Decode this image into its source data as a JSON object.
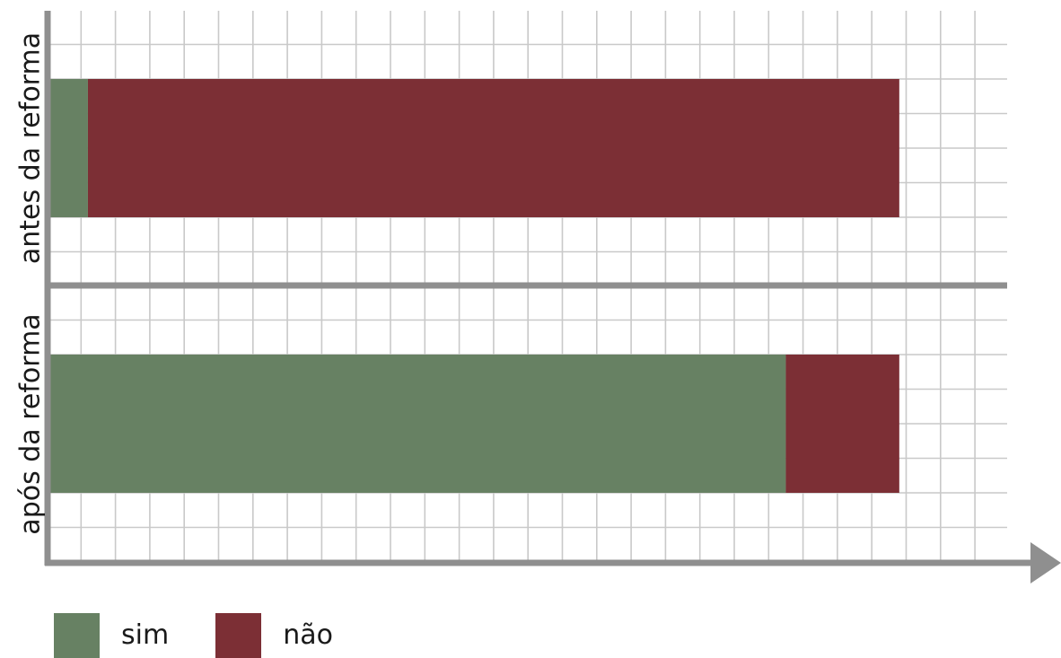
{
  "chart_data": {
    "type": "bar",
    "orientation": "horizontal",
    "stacked": true,
    "categories": [
      "antes da reforma",
      "após da reforma"
    ],
    "series": [
      {
        "name": "sim",
        "color": "#678163",
        "values": [
          1.2,
          21.5
        ]
      },
      {
        "name": "não",
        "color": "#7c2f35",
        "values": [
          23.6,
          3.3
        ]
      }
    ],
    "xlim": [
      0,
      28.6
    ],
    "grid": true,
    "axis_arrow": true,
    "legend": "bottom-left"
  },
  "legend": {
    "items": [
      {
        "label": "sim",
        "color": "#678163"
      },
      {
        "label": "não",
        "color": "#7c2f35"
      }
    ]
  }
}
